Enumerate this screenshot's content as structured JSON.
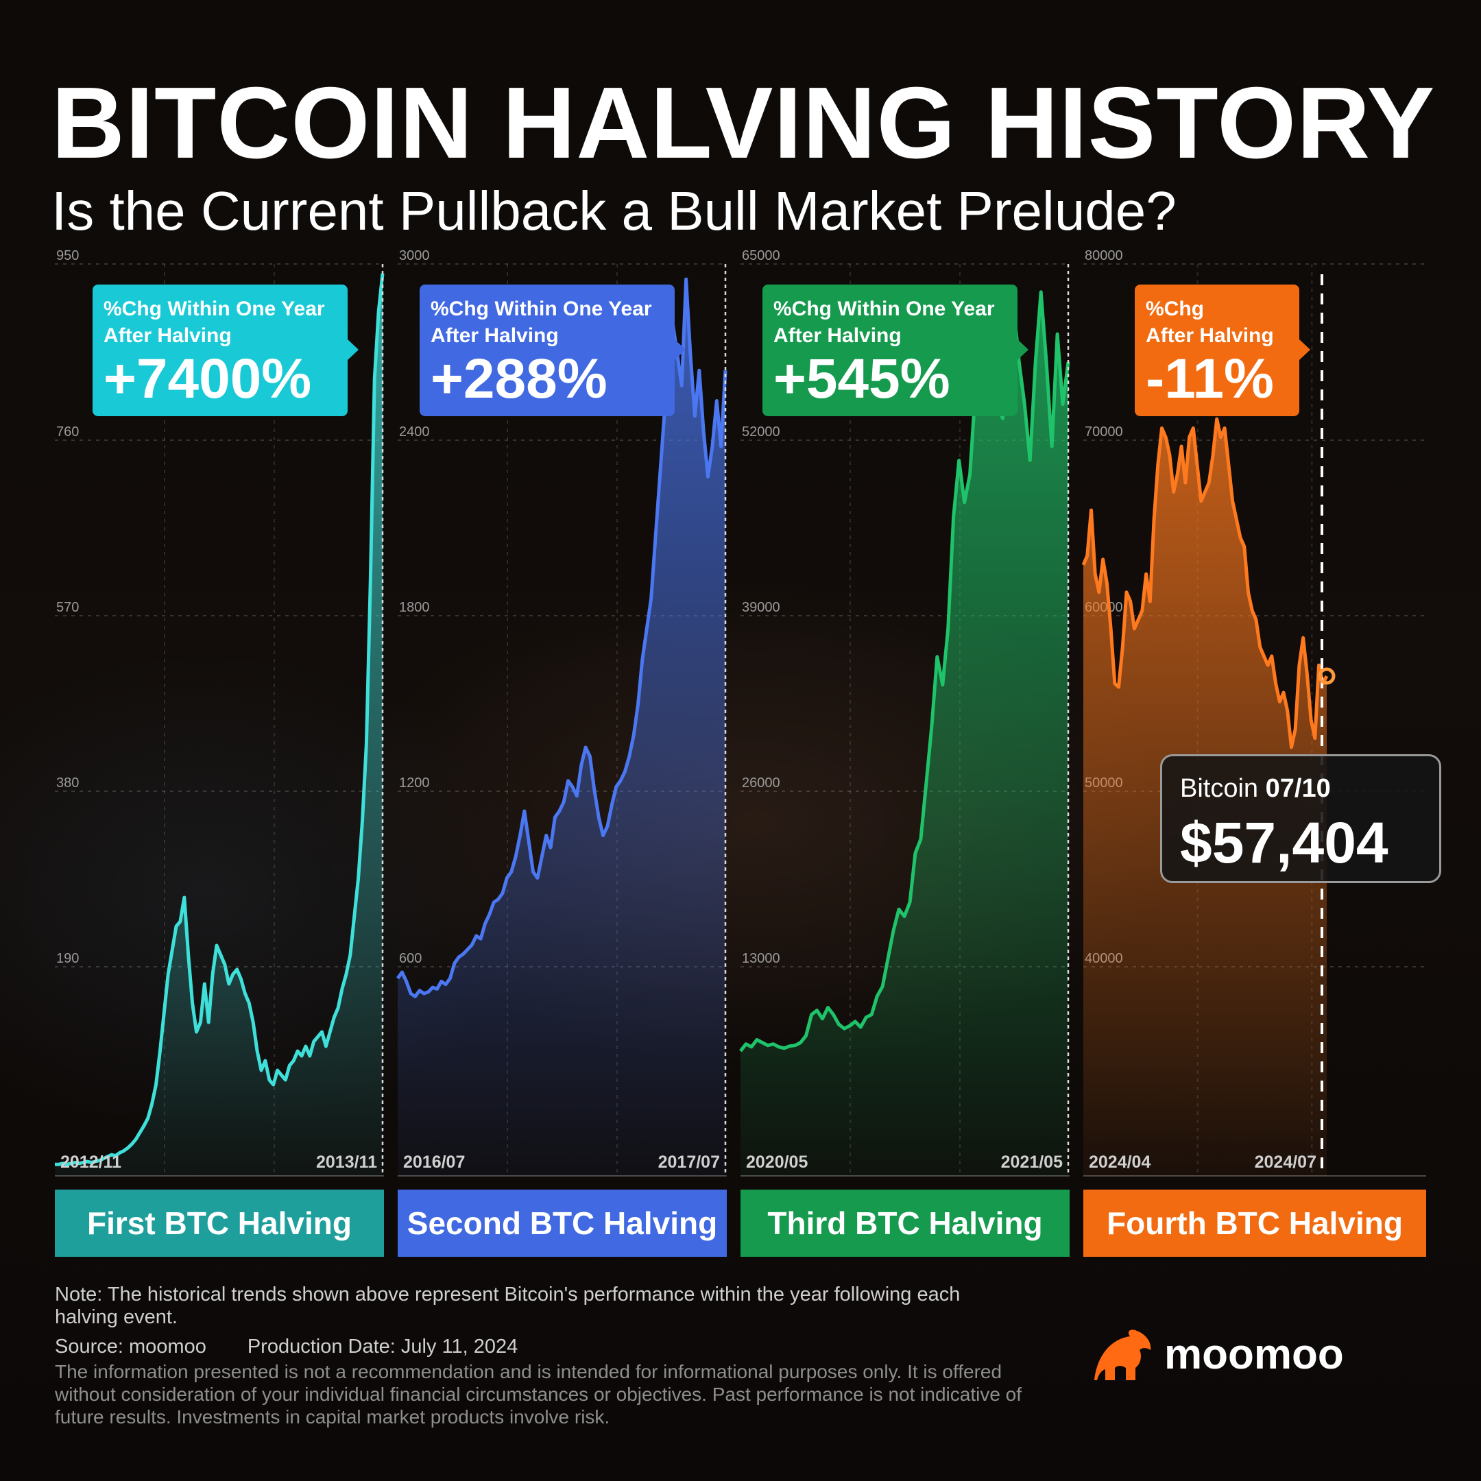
{
  "header": {
    "title": "BITCOIN HALVING HISTORY",
    "subtitle": "Is the Current Pullback a Bull Market Prelude?"
  },
  "chart_data": [
    {
      "type": "area",
      "halving_label": "First BTC Halving",
      "color": "#3fe0da",
      "box_color": "#19c9d6",
      "callout": {
        "line1": "%Chg Within One Year",
        "line2": "After Halving",
        "value": "+7400%"
      },
      "yticks": [
        "950",
        "760",
        "570",
        "380",
        "190"
      ],
      "ylim": [
        0,
        950
      ],
      "x_start_label": "2012/11",
      "x_end_label": "2013/11",
      "values": [
        12,
        12,
        13,
        12,
        13,
        14,
        13,
        14,
        15,
        14,
        15,
        16,
        18,
        20,
        22,
        21,
        24,
        26,
        29,
        33,
        38,
        45,
        52,
        60,
        75,
        95,
        130,
        170,
        210,
        235,
        260,
        265,
        290,
        230,
        180,
        150,
        160,
        200,
        160,
        210,
        240,
        230,
        220,
        200,
        210,
        215,
        205,
        190,
        180,
        160,
        130,
        110,
        120,
        100,
        95,
        110,
        105,
        100,
        115,
        120,
        130,
        125,
        135,
        125,
        140,
        145,
        150,
        135,
        150,
        165,
        175,
        195,
        210,
        230,
        270,
        310,
        370,
        450,
        620,
        830,
        900,
        940
      ]
    },
    {
      "type": "area",
      "halving_label": "Second BTC Halving",
      "color": "#4b78f2",
      "box_color": "#4169e1",
      "callout": {
        "line1": "%Chg Within One Year",
        "line2": "After Halving",
        "value": "+288%"
      },
      "yticks": [
        "3000",
        "2400",
        "1800",
        "1200",
        "600"
      ],
      "ylim": [
        0,
        3000
      ],
      "x_start_label": "2016/07",
      "x_end_label": "2017/07",
      "values": [
        650,
        670,
        640,
        600,
        590,
        610,
        600,
        605,
        620,
        615,
        640,
        630,
        650,
        700,
        720,
        730,
        745,
        760,
        790,
        780,
        830,
        860,
        900,
        910,
        930,
        980,
        1000,
        1050,
        1120,
        1200,
        1100,
        1000,
        980,
        1050,
        1120,
        1080,
        1180,
        1200,
        1230,
        1300,
        1280,
        1250,
        1350,
        1410,
        1380,
        1270,
        1180,
        1120,
        1150,
        1220,
        1280,
        1300,
        1330,
        1380,
        1450,
        1550,
        1700,
        1800,
        1900,
        2100,
        2300,
        2500,
        2650,
        2800,
        2700,
        2600,
        2950,
        2700,
        2500,
        2650,
        2450,
        2300,
        2400,
        2550,
        2400,
        2650
      ]
    },
    {
      "type": "area",
      "halving_label": "Third BTC Halving",
      "color": "#1fc46a",
      "box_color": "#159a4e",
      "callout": {
        "line1": "%Chg Within One Year",
        "line2": "After Halving",
        "value": "+545%"
      },
      "yticks": [
        "65000",
        "52000",
        "39000",
        "26000",
        "13000"
      ],
      "ylim": [
        0,
        65000
      ],
      "x_start_label": "2020/05",
      "x_end_label": "2021/05",
      "values": [
        8900,
        9400,
        9200,
        9700,
        9500,
        9300,
        9400,
        9200,
        9100,
        9250,
        9300,
        9500,
        10000,
        11500,
        11800,
        11200,
        12000,
        11500,
        10800,
        10500,
        10700,
        11000,
        10600,
        11300,
        11500,
        12800,
        13500,
        15500,
        17500,
        19000,
        18500,
        19500,
        23000,
        24000,
        28000,
        32000,
        37000,
        35000,
        39000,
        47000,
        51000,
        48000,
        50000,
        56000,
        58000,
        57000,
        59000,
        55000,
        54000,
        60000,
        62000,
        58000,
        55000,
        51000,
        58000,
        63000,
        58000,
        52000,
        60000,
        55000,
        58000
      ]
    },
    {
      "type": "area",
      "halving_label": "Fourth BTC Halving",
      "color": "#ff7a1f",
      "box_color": "#f26b10",
      "callout": {
        "line1": "%Chg",
        "line2": "After Halving",
        "value": "-11%"
      },
      "yticks": [
        "80000",
        "70000",
        "60000",
        "50000",
        "40000"
      ],
      "ylim": [
        30000,
        80000
      ],
      "x_start_label": "2024/04",
      "x_end_label": "2024/07",
      "values": [
        63500,
        64000,
        66500,
        63000,
        62000,
        63800,
        62500,
        60000,
        57000,
        56800,
        59000,
        62000,
        61500,
        60000,
        60500,
        61000,
        63000,
        61500,
        66000,
        69000,
        71000,
        70500,
        69500,
        67500,
        68500,
        70000,
        68000,
        70500,
        71000,
        69000,
        67000,
        67500,
        68000,
        69500,
        71500,
        70500,
        71000,
        69000,
        67000,
        66000,
        65000,
        64500,
        62000,
        61000,
        60500,
        59000,
        58500,
        58000,
        58500,
        57000,
        56000,
        56500,
        55500,
        53500,
        54500,
        58000,
        59500,
        57500,
        55000,
        54000,
        58000,
        57000,
        57404
      ],
      "current": {
        "label": "Bitcoin",
        "date": "07/10",
        "price": "$57,404"
      }
    }
  ],
  "footer": {
    "note": "Note: The historical trends shown above represent Bitcoin's performance within the year following each halving event.",
    "source": "Source: moomoo",
    "production_date": "Production Date: July 11, 2024",
    "disclaimer": "The information presented is not a recommendation and is intended for informational purposes only. It is offered without consideration of your individual financial circumstances or objectives. Past performance is not indicative of future results. Investments in capital market products involve risk.",
    "brand": "moomoo",
    "brand_color": "#ff6a13"
  }
}
